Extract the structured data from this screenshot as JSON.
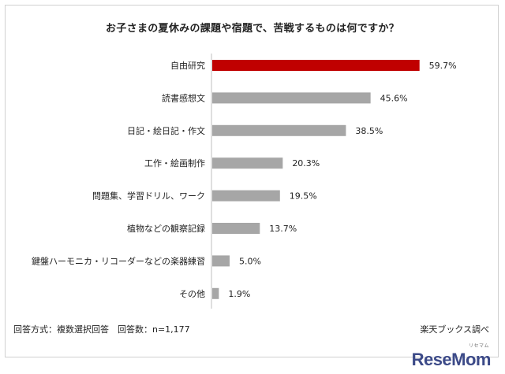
{
  "title": "お子さまの夏休みの課題や宿題で、苦戦するものは何ですか？",
  "footer": {
    "note": "回答方式：複数選択回答　回答数：n=1,177",
    "source": "楽天ブックス調べ"
  },
  "logo": {
    "text": "ReseMom",
    "small": "リセマム"
  },
  "colors": {
    "highlight": "#c00000",
    "bar": "#a6a6a6",
    "axis": "#bfbfbf"
  },
  "chart_data": {
    "type": "bar",
    "orientation": "horizontal",
    "categories": [
      "自由研究",
      "読書感想文",
      "日記・絵日記・作文",
      "工作・絵画制作",
      "問題集、学習ドリル、ワーク",
      "植物などの観察記録",
      "鍵盤ハーモニカ・リコーダーなどの楽器練習",
      "その他"
    ],
    "values": [
      59.7,
      45.6,
      38.5,
      20.3,
      19.5,
      13.7,
      5.0,
      1.9
    ],
    "value_labels": [
      "59.7%",
      "45.6%",
      "38.5%",
      "20.3%",
      "19.5%",
      "13.7%",
      "5.0%",
      "1.9%"
    ],
    "highlight_index": 0,
    "unit": "%",
    "xlim": [
      0,
      60
    ],
    "grid": false,
    "legend": "none"
  }
}
